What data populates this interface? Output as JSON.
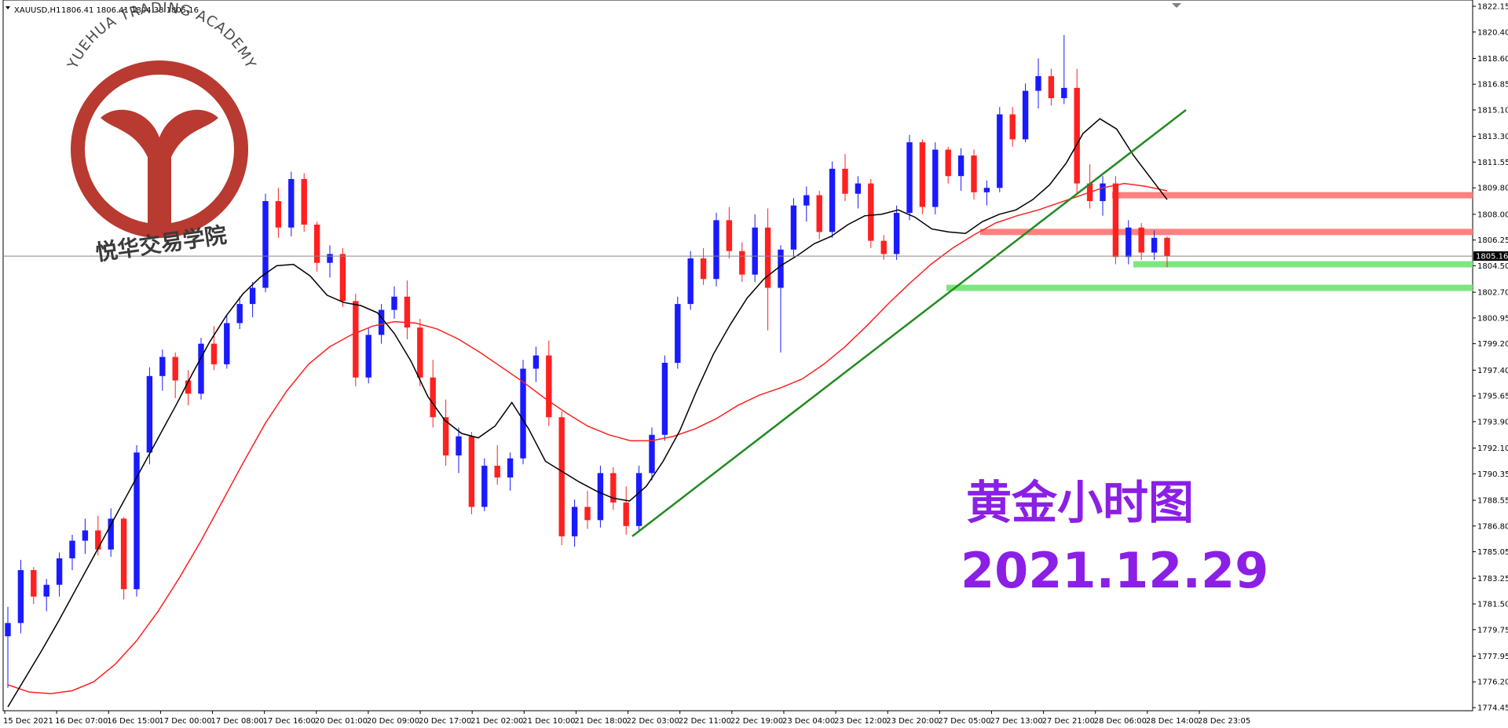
{
  "header": {
    "symbol": "XAUUSD,H1",
    "ohlc": "1806.41 1806.41 1804.38 1805.16"
  },
  "logo": {
    "text_arc": "YUEHUA TRADING ACADEMY",
    "text_cn": "悦华交易学院"
  },
  "annotation": {
    "title": "黄金小时图",
    "date": "2021.12.29"
  },
  "colors": {
    "bull": "#1a1aff",
    "bear": "#ff2020",
    "ma_fast": "#000000",
    "ma_slow": "#ff2020",
    "trendline": "#228b22",
    "resistance": "#ff8080",
    "support": "#7fe57f",
    "annotation": "#8b1fe6",
    "logo": "#c0392b"
  },
  "chart_data": {
    "type": "candlestick",
    "current_price": "1805.16",
    "y_ticks": [
      "1822.15",
      "1820.40",
      "1818.60",
      "1816.85",
      "1815.10",
      "1813.30",
      "1811.55",
      "1809.80",
      "1808.00",
      "1806.25",
      "1804.50",
      "1802.70",
      "1800.95",
      "1799.20",
      "1797.40",
      "1795.65",
      "1793.90",
      "1792.10",
      "1790.35",
      "1788.55",
      "1786.80",
      "1785.05",
      "1783.25",
      "1781.50",
      "1779.75",
      "1777.95",
      "1776.20",
      "1774.45"
    ],
    "x_ticks": [
      "15 Dec 2021",
      "16 Dec 07:00",
      "16 Dec 15:00",
      "17 Dec 00:00",
      "17 Dec 08:00",
      "17 Dec 16:00",
      "20 Dec 01:00",
      "20 Dec 09:00",
      "20 Dec 17:00",
      "21 Dec 02:00",
      "21 Dec 10:00",
      "21 Dec 18:00",
      "22 Dec 03:00",
      "22 Dec 11:00",
      "22 Dec 19:00",
      "23 Dec 04:00",
      "23 Dec 12:00",
      "23 Dec 20:00",
      "27 Dec 05:00",
      "27 Dec 13:00",
      "27 Dec 21:00",
      "28 Dec 06:00",
      "28 Dec 14:00",
      "28 Dec 23:05"
    ],
    "ylim": [
      1774.45,
      1822.15
    ],
    "candles": [
      [
        1779.3,
        1781.3,
        1775.8,
        1780.2
      ],
      [
        1780.2,
        1784.5,
        1779.5,
        1783.8
      ],
      [
        1783.8,
        1784.0,
        1781.5,
        1782.0
      ],
      [
        1782.0,
        1783.2,
        1781.0,
        1782.8
      ],
      [
        1782.8,
        1785.0,
        1782.0,
        1784.6
      ],
      [
        1784.6,
        1786.2,
        1783.8,
        1785.8
      ],
      [
        1785.8,
        1787.3,
        1784.9,
        1786.5
      ],
      [
        1786.5,
        1787.5,
        1784.8,
        1785.2
      ],
      [
        1785.2,
        1788.0,
        1784.7,
        1787.3
      ],
      [
        1787.3,
        1787.4,
        1781.8,
        1782.5
      ],
      [
        1782.5,
        1792.3,
        1782.0,
        1791.8
      ],
      [
        1791.8,
        1797.6,
        1791.0,
        1797.0
      ],
      [
        1797.0,
        1798.8,
        1796.0,
        1798.3
      ],
      [
        1798.3,
        1798.6,
        1795.5,
        1796.7
      ],
      [
        1796.7,
        1797.4,
        1795.0,
        1795.8
      ],
      [
        1795.8,
        1799.6,
        1795.4,
        1799.2
      ],
      [
        1799.2,
        1800.4,
        1797.4,
        1797.8
      ],
      [
        1797.8,
        1801.1,
        1797.5,
        1800.6
      ],
      [
        1800.6,
        1802.4,
        1800.2,
        1801.9
      ],
      [
        1801.9,
        1803.4,
        1801.0,
        1803.0
      ],
      [
        1803.0,
        1809.4,
        1802.7,
        1808.9
      ],
      [
        1808.9,
        1809.8,
        1806.4,
        1807.1
      ],
      [
        1807.1,
        1810.9,
        1806.5,
        1810.4
      ],
      [
        1810.4,
        1810.8,
        1806.8,
        1807.3
      ],
      [
        1807.3,
        1807.5,
        1804.1,
        1804.7
      ],
      [
        1804.7,
        1805.9,
        1803.7,
        1805.3
      ],
      [
        1805.3,
        1805.7,
        1801.7,
        1802.1
      ],
      [
        1802.1,
        1802.6,
        1796.3,
        1796.9
      ],
      [
        1796.9,
        1800.3,
        1796.5,
        1799.8
      ],
      [
        1799.8,
        1801.9,
        1799.2,
        1801.5
      ],
      [
        1801.5,
        1803.1,
        1800.9,
        1802.4
      ],
      [
        1802.4,
        1803.5,
        1799.5,
        1800.3
      ],
      [
        1800.3,
        1800.9,
        1796.3,
        1796.9
      ],
      [
        1796.9,
        1798.1,
        1793.5,
        1794.2
      ],
      [
        1794.2,
        1795.4,
        1790.9,
        1791.6
      ],
      [
        1791.6,
        1793.5,
        1790.4,
        1792.9
      ],
      [
        1792.9,
        1793.2,
        1787.6,
        1788.1
      ],
      [
        1788.1,
        1791.4,
        1787.8,
        1790.9
      ],
      [
        1790.9,
        1792.3,
        1789.6,
        1790.1
      ],
      [
        1790.1,
        1791.8,
        1789.2,
        1791.4
      ],
      [
        1791.4,
        1798.1,
        1791.0,
        1797.5
      ],
      [
        1797.5,
        1799.0,
        1796.6,
        1798.4
      ],
      [
        1798.4,
        1799.4,
        1793.6,
        1794.2
      ],
      [
        1794.2,
        1794.6,
        1785.5,
        1786.1
      ],
      [
        1786.1,
        1788.6,
        1785.4,
        1788.1
      ],
      [
        1788.1,
        1789.2,
        1786.6,
        1787.2
      ],
      [
        1787.2,
        1790.9,
        1786.7,
        1790.4
      ],
      [
        1790.4,
        1790.8,
        1787.9,
        1788.4
      ],
      [
        1788.4,
        1789.5,
        1786.2,
        1786.8
      ],
      [
        1786.8,
        1790.9,
        1786.4,
        1790.4
      ],
      [
        1790.4,
        1793.5,
        1789.9,
        1793.0
      ],
      [
        1793.0,
        1798.4,
        1792.6,
        1797.9
      ],
      [
        1797.9,
        1802.4,
        1797.5,
        1801.9
      ],
      [
        1801.9,
        1805.5,
        1801.5,
        1805.0
      ],
      [
        1805.0,
        1805.7,
        1803.2,
        1803.6
      ],
      [
        1803.6,
        1808.1,
        1803.1,
        1807.6
      ],
      [
        1807.6,
        1808.5,
        1805.0,
        1805.5
      ],
      [
        1805.5,
        1806.1,
        1803.4,
        1803.9
      ],
      [
        1803.9,
        1808.0,
        1803.4,
        1807.1
      ],
      [
        1807.1,
        1808.4,
        1800.1,
        1803.0
      ],
      [
        1803.0,
        1805.9,
        1798.6,
        1805.6
      ],
      [
        1805.6,
        1809.1,
        1805.1,
        1808.6
      ],
      [
        1808.6,
        1809.9,
        1807.5,
        1809.3
      ],
      [
        1809.3,
        1809.6,
        1806.3,
        1806.8
      ],
      [
        1806.8,
        1811.6,
        1806.4,
        1811.1
      ],
      [
        1811.1,
        1812.1,
        1808.9,
        1809.4
      ],
      [
        1809.4,
        1810.6,
        1808.4,
        1810.1
      ],
      [
        1810.1,
        1810.4,
        1805.7,
        1806.2
      ],
      [
        1806.2,
        1806.6,
        1804.9,
        1805.3
      ],
      [
        1805.3,
        1808.6,
        1804.9,
        1808.1
      ],
      [
        1808.1,
        1813.4,
        1807.6,
        1812.9
      ],
      [
        1812.9,
        1813.1,
        1808.0,
        1808.5
      ],
      [
        1808.5,
        1812.9,
        1808.0,
        1812.4
      ],
      [
        1812.4,
        1812.6,
        1810.1,
        1810.6
      ],
      [
        1810.6,
        1812.5,
        1809.6,
        1812.0
      ],
      [
        1812.0,
        1812.4,
        1809.0,
        1809.5
      ],
      [
        1809.5,
        1810.3,
        1808.6,
        1809.8
      ],
      [
        1809.8,
        1815.3,
        1809.5,
        1814.8
      ],
      [
        1814.8,
        1815.3,
        1812.6,
        1813.1
      ],
      [
        1813.1,
        1816.9,
        1812.9,
        1816.4
      ],
      [
        1816.4,
        1818.6,
        1815.2,
        1817.4
      ],
      [
        1817.4,
        1817.9,
        1815.4,
        1815.9
      ],
      [
        1815.9,
        1820.2,
        1815.5,
        1816.6
      ],
      [
        1816.6,
        1817.9,
        1809.4,
        1810.1
      ],
      [
        1810.1,
        1811.4,
        1808.4,
        1808.9
      ],
      [
        1808.9,
        1810.6,
        1807.9,
        1810.1
      ],
      [
        1810.1,
        1810.6,
        1804.6,
        1805.1
      ],
      [
        1805.1,
        1807.6,
        1804.6,
        1807.1
      ],
      [
        1807.1,
        1807.4,
        1804.9,
        1805.4
      ],
      [
        1805.4,
        1806.9,
        1804.9,
        1806.4
      ],
      [
        1806.4,
        1806.5,
        1804.4,
        1805.16
      ]
    ],
    "ma_fast": [
      1774.5,
      1776.4,
      1778.3,
      1780.3,
      1782.4,
      1784.5,
      1786.6,
      1788.7,
      1790.8,
      1792.9,
      1795.0,
      1797.2,
      1799.3,
      1801.1,
      1802.6,
      1803.7,
      1804.5,
      1804.6,
      1803.8,
      1802.5,
      1802.0,
      1801.8,
      1801.3,
      1799.9,
      1798.0,
      1795.6,
      1794.0,
      1793.1,
      1792.8,
      1793.6,
      1795.2,
      1793.4,
      1791.2,
      1790.5,
      1789.8,
      1789.2,
      1788.7,
      1788.5,
      1789.5,
      1791.2,
      1793.3,
      1796.0,
      1798.5,
      1800.5,
      1802.3,
      1803.6,
      1804.5,
      1805.2,
      1806.0,
      1806.5,
      1807.3,
      1807.9,
      1808.0,
      1808.3,
      1807.8,
      1807.0,
      1806.8,
      1806.7,
      1807.5,
      1808.0,
      1808.3,
      1809.0,
      1810.0,
      1811.5,
      1813.5,
      1814.5,
      1813.8,
      1812.0,
      1810.5,
      1809.0
    ],
    "ma_slow": [
      1776.0,
      1775.5,
      1775.4,
      1775.6,
      1776.2,
      1777.4,
      1779.0,
      1781.0,
      1783.3,
      1785.8,
      1788.5,
      1791.2,
      1793.8,
      1796.0,
      1797.8,
      1799.0,
      1799.8,
      1800.4,
      1800.7,
      1800.6,
      1800.2,
      1799.5,
      1798.6,
      1797.6,
      1796.6,
      1795.5,
      1794.5,
      1793.6,
      1793.0,
      1792.6,
      1792.6,
      1792.9,
      1793.4,
      1794.1,
      1795.0,
      1795.7,
      1796.2,
      1796.8,
      1797.8,
      1799.0,
      1800.4,
      1801.9,
      1803.3,
      1804.6,
      1805.7,
      1806.6,
      1807.4,
      1807.9,
      1808.3,
      1808.8,
      1809.3,
      1809.8,
      1810.1,
      1809.9,
      1809.6
    ],
    "trendline": [
      [
        1786.1,
        1786.1
      ],
      [
        1815.1,
        1815.1
      ]
    ],
    "resistance_levels": [
      1809.3,
      1806.8
    ],
    "support_levels": [
      1804.6,
      1803.0
    ]
  }
}
